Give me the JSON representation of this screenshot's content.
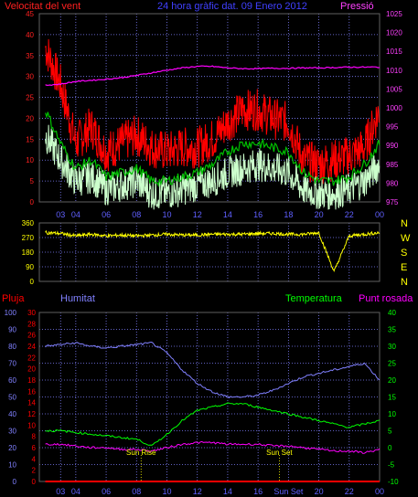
{
  "header": {
    "title": "24 hora gràfic dat. 09 Enero 2012",
    "left_label": "Velocitat del vent",
    "right_label": "Pressió"
  },
  "colors": {
    "bg": "#000000",
    "grid": "#8080ff",
    "axis_left": "#ff2020",
    "axis_right": "#ff40ff",
    "wind_gust": "#ff0000",
    "wind_avg": "#00c000",
    "wind_speed": "#ccffcc",
    "pressure": "#ff00ff",
    "direction": "#ffff00",
    "humidity": "#8080ff",
    "temperature": "#00ff00",
    "dewpoint": "#ff00ff",
    "rain": "#ff0000",
    "sun_marker": "#ffff00",
    "x_tick": "#6060ff"
  },
  "x_ticks": [
    "03",
    "04",
    "06",
    "08",
    "10",
    "12",
    "14",
    "16",
    "18",
    "20",
    "22",
    "00"
  ],
  "x_ticks_bottom": [
    "03",
    "04",
    "06",
    "08",
    "10",
    "12",
    "14",
    "16",
    "Sun Set",
    "20",
    "22",
    "00"
  ],
  "chart_data": [
    {
      "type": "line",
      "id": "wind_pressure",
      "title": "24 hora gràfic dat. 09 Enero 2012",
      "ylabel": "Velocitat del vent",
      "y2label": "Pressió",
      "ylim": [
        0,
        45
      ],
      "y2lim": [
        975,
        1025
      ],
      "yticks": [
        0,
        5,
        10,
        15,
        20,
        25,
        30,
        35,
        40,
        45
      ],
      "y2ticks": [
        975,
        980,
        985,
        990,
        995,
        1000,
        1005,
        1010,
        1015,
        1020,
        1025
      ],
      "x_hours": [
        2,
        3,
        4,
        5,
        6,
        7,
        8,
        9,
        10,
        11,
        12,
        13,
        14,
        15,
        16,
        17,
        18,
        19,
        20,
        21,
        22,
        23,
        24
      ],
      "series": [
        {
          "name": "gust",
          "values": [
            37,
            28,
            14,
            18,
            12,
            14,
            16,
            13,
            12,
            13,
            13,
            15,
            19,
            22,
            22,
            20,
            19,
            10,
            9,
            10,
            11,
            13,
            22
          ]
        },
        {
          "name": "average",
          "values": [
            22,
            14,
            8,
            10,
            6,
            7,
            8,
            5,
            5,
            6,
            7,
            9,
            12,
            14,
            14,
            13,
            12,
            7,
            5,
            5,
            6,
            9,
            14
          ]
        },
        {
          "name": "speed",
          "values": [
            16,
            10,
            5,
            6,
            3,
            4,
            5,
            2,
            2,
            3,
            4,
            5,
            7,
            8,
            9,
            8,
            7,
            3,
            2,
            2,
            3,
            5,
            9
          ]
        },
        {
          "name": "pressure",
          "values": [
            1006,
            1006.3,
            1007,
            1007.3,
            1007.6,
            1008,
            1008.6,
            1009.3,
            1010,
            1010.6,
            1011,
            1011,
            1010.6,
            1010.4,
            1010.4,
            1010.5,
            1010.5,
            1010.6,
            1010.6,
            1010.7,
            1010.8,
            1010.8,
            1010.8
          ]
        }
      ]
    },
    {
      "type": "line",
      "id": "wind_direction",
      "ylim": [
        0,
        360
      ],
      "yticks": [
        0,
        90,
        180,
        270,
        360
      ],
      "compass": [
        "W",
        "S",
        "E",
        "N"
      ],
      "compass_top": "N",
      "x_hours": [
        2,
        3,
        4,
        5,
        6,
        7,
        8,
        9,
        10,
        11,
        12,
        13,
        14,
        15,
        16,
        17,
        18,
        19,
        20,
        21,
        22,
        23,
        24
      ],
      "series": [
        {
          "name": "direction",
          "values": [
            300,
            295,
            280,
            290,
            280,
            285,
            280,
            285,
            290,
            285,
            285,
            290,
            290,
            290,
            295,
            295,
            290,
            290,
            300,
            60,
            280,
            290,
            300
          ]
        }
      ]
    },
    {
      "type": "line",
      "id": "hum_temp",
      "labels": {
        "rain": "Pluja",
        "humidity": "Humitat",
        "temperature": "Temperatura",
        "dewpoint": "Punt rosada"
      },
      "ylim_humidity": [
        0,
        100
      ],
      "yticks_humidity": [
        0,
        10,
        20,
        30,
        40,
        50,
        60,
        70,
        80,
        90,
        100
      ],
      "ylim_rain": [
        0,
        30
      ],
      "yticks_rain": [
        0,
        2,
        4,
        6,
        8,
        10,
        12,
        14,
        16,
        18,
        20,
        22,
        24,
        26,
        28,
        30
      ],
      "ylim_temp": [
        -10,
        40
      ],
      "yticks_temp": [
        -10,
        -5,
        0,
        5,
        10,
        15,
        20,
        25,
        30,
        35,
        40
      ],
      "x_hours": [
        2,
        3,
        4,
        5,
        6,
        7,
        8,
        9,
        10,
        11,
        12,
        13,
        14,
        15,
        16,
        17,
        18,
        19,
        20,
        21,
        22,
        23,
        24
      ],
      "series": [
        {
          "name": "Humitat",
          "values": [
            80,
            81,
            82,
            80,
            79,
            80,
            81,
            82,
            76,
            66,
            58,
            53,
            50,
            50,
            51,
            54,
            58,
            62,
            64,
            66,
            68,
            70,
            60
          ]
        },
        {
          "name": "Temperatura",
          "values": [
            5,
            5,
            4.5,
            4,
            3.5,
            3,
            2.5,
            0.5,
            4,
            8,
            11,
            12,
            13,
            13,
            12,
            11,
            10,
            9,
            8,
            7,
            6,
            7,
            8
          ]
        },
        {
          "name": "Punt rosada",
          "values": [
            1,
            1,
            0.5,
            0,
            0,
            -0.5,
            -0.5,
            -1,
            0,
            1,
            1.5,
            1.5,
            1,
            1,
            1,
            0.5,
            0.5,
            0,
            -0.5,
            -1,
            -1,
            -1.5,
            -0.5
          ]
        },
        {
          "name": "Pluja",
          "values": [
            0,
            0,
            0,
            0,
            0,
            0,
            0,
            0,
            0,
            0,
            0,
            0,
            0,
            0,
            0,
            0,
            0,
            0,
            0,
            0,
            0,
            0,
            0
          ]
        }
      ],
      "annotations": [
        {
          "label": "Sun Rise",
          "hour": 8.3
        },
        {
          "label": "Sun Set",
          "hour": 17.4
        }
      ]
    }
  ]
}
